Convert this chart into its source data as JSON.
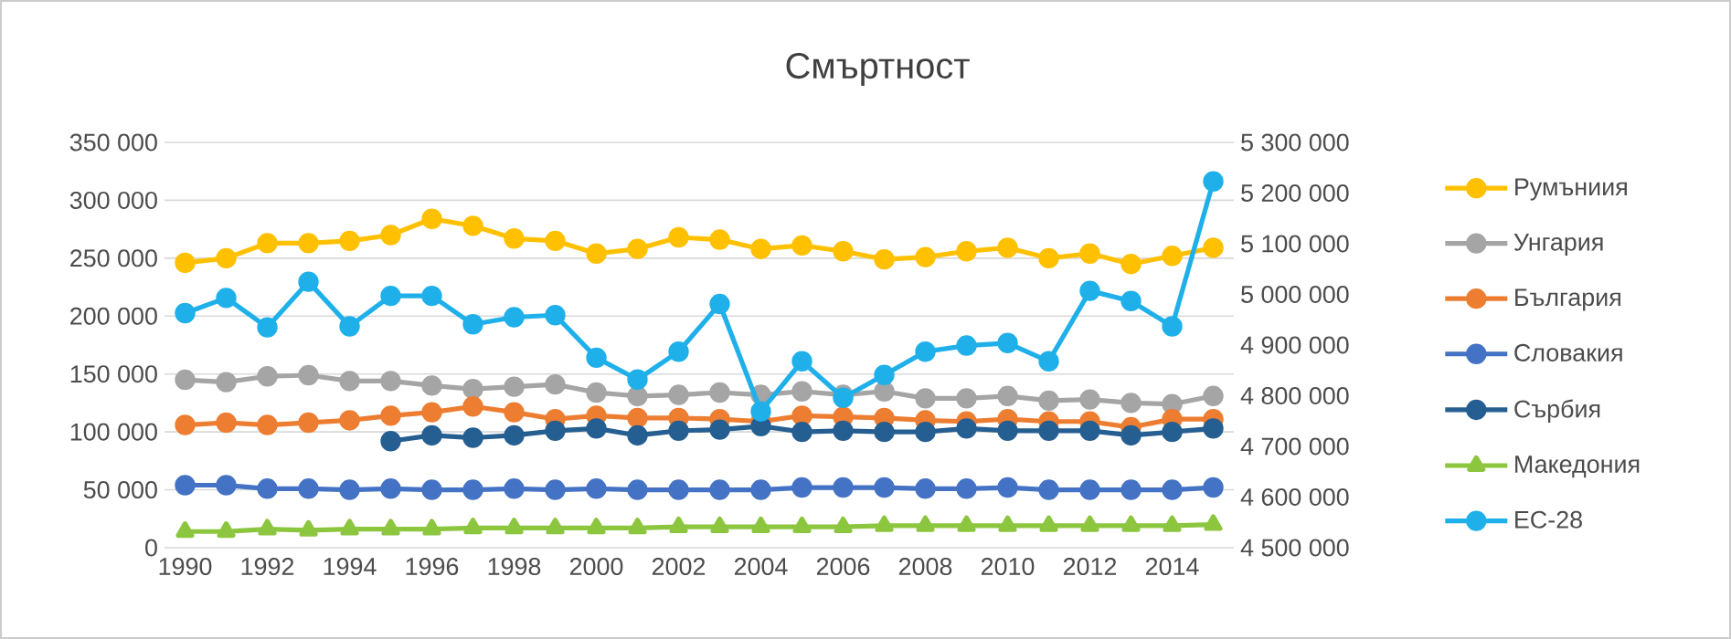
{
  "chart_data": {
    "type": "line",
    "title": "Смъртност",
    "x": [
      1990,
      1991,
      1992,
      1993,
      1994,
      1995,
      1996,
      1997,
      1998,
      1999,
      2000,
      2001,
      2002,
      2003,
      2004,
      2005,
      2006,
      2007,
      2008,
      2009,
      2010,
      2011,
      2012,
      2013,
      2014,
      2015
    ],
    "xlim": [
      1989.5,
      2015.5
    ],
    "xticks": [
      1990,
      1992,
      1994,
      1996,
      1998,
      2000,
      2002,
      2004,
      2006,
      2008,
      2010,
      2012,
      2014
    ],
    "ylim": [
      0,
      350000
    ],
    "yticks": [
      {
        "value": 0,
        "label": "0"
      },
      {
        "value": 50000,
        "label": "50 000"
      },
      {
        "value": 100000,
        "label": "100 000"
      },
      {
        "value": 150000,
        "label": "150 000"
      },
      {
        "value": 200000,
        "label": "200 000"
      },
      {
        "value": 250000,
        "label": "250 000"
      },
      {
        "value": 300000,
        "label": "300 000"
      },
      {
        "value": 350000,
        "label": "350 000"
      }
    ],
    "y2lim": [
      4500000,
      5300000
    ],
    "y2ticks": [
      {
        "value": 4500000,
        "label": "4 500 000"
      },
      {
        "value": 4600000,
        "label": "4 600 000"
      },
      {
        "value": 4700000,
        "label": "4 700 000"
      },
      {
        "value": 4800000,
        "label": "4 800 000"
      },
      {
        "value": 4900000,
        "label": "4 900 000"
      },
      {
        "value": 5000000,
        "label": "5 000 000"
      },
      {
        "value": 5100000,
        "label": "5 100 000"
      },
      {
        "value": 5200000,
        "label": "5 200 000"
      },
      {
        "value": 5300000,
        "label": "5 300 000"
      }
    ],
    "grid": "y",
    "legend": "right",
    "marker": "circle",
    "series": [
      {
        "name": "Румъниия",
        "color": "#ffc000",
        "values": [
          246000,
          250000,
          263000,
          263000,
          265000,
          270000,
          284000,
          278000,
          267000,
          265000,
          254000,
          258000,
          268000,
          266000,
          258000,
          261000,
          256000,
          249000,
          251000,
          256000,
          259000,
          250000,
          254000,
          245000,
          252000,
          259000
        ]
      },
      {
        "name": "Унгария",
        "color": "#a5a5a5",
        "values": [
          145000,
          143000,
          148000,
          149000,
          144000,
          144000,
          140000,
          137000,
          139000,
          141000,
          134000,
          131000,
          132000,
          134000,
          132000,
          135000,
          132000,
          135000,
          129000,
          129000,
          131000,
          127000,
          128000,
          125000,
          124000,
          131000
        ]
      },
      {
        "name": "България",
        "color": "#ed7d31",
        "values": [
          106000,
          108000,
          106000,
          108000,
          110000,
          114000,
          117000,
          122000,
          117000,
          111000,
          114000,
          112000,
          112000,
          111000,
          109000,
          114000,
          113000,
          112000,
          110000,
          109000,
          111000,
          109000,
          109000,
          104000,
          111000,
          111000
        ]
      },
      {
        "name": "Словакия",
        "color": "#4472c4",
        "values": [
          54000,
          54000,
          51000,
          51000,
          50000,
          51000,
          50000,
          50000,
          51000,
          50000,
          51000,
          50000,
          50000,
          50000,
          50000,
          52000,
          52000,
          52000,
          51000,
          51000,
          52000,
          50000,
          50000,
          50000,
          50000,
          52000
        ]
      },
      {
        "name": "Сърбия",
        "color": "#255e91",
        "values": [
          null,
          null,
          null,
          null,
          null,
          92000,
          97000,
          95000,
          97000,
          101000,
          103000,
          97000,
          101000,
          102000,
          105000,
          100000,
          101000,
          100000,
          100000,
          103000,
          101000,
          101000,
          101000,
          97000,
          100000,
          103000
        ]
      },
      {
        "name": "Македония",
        "color": "#8cc63f",
        "marker": "triangle",
        "values": [
          14000,
          14000,
          16000,
          15000,
          16000,
          16000,
          16000,
          17000,
          17000,
          17000,
          17000,
          17000,
          18000,
          18000,
          18000,
          18000,
          18000,
          19000,
          19000,
          19000,
          19000,
          19000,
          19000,
          19000,
          19000,
          20000
        ]
      },
      {
        "name": "ЕС-28",
        "color": "#1fb0ea",
        "axis": "y2",
        "values": [
          4963000,
          4993000,
          4935000,
          5025000,
          4937000,
          4997000,
          4997000,
          4941000,
          4955000,
          4959000,
          4875000,
          4832000,
          4887000,
          4981000,
          4769000,
          4868000,
          4796000,
          4841000,
          4887000,
          4899000,
          4904000,
          4868000,
          5007000,
          4987000,
          4937000,
          5223000
        ]
      }
    ]
  }
}
